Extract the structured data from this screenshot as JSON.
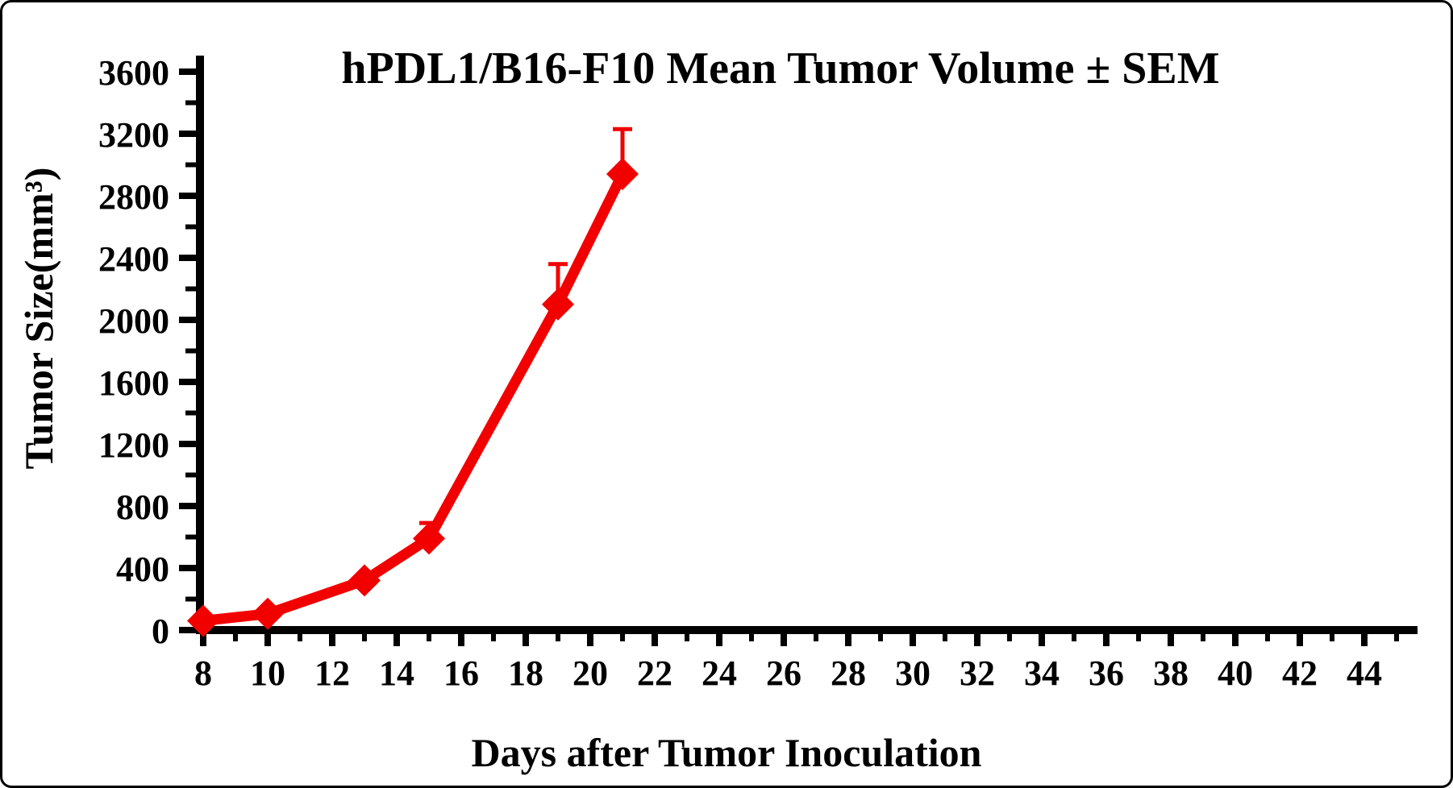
{
  "figure": {
    "background_color": "#ffffff",
    "frame_color": "#000000",
    "axis_color": "#000000",
    "series_color": "#f20000"
  },
  "chart_data": {
    "type": "line",
    "title": "hPDL1/B16-F10 Mean Tumor Volume ± SEM",
    "xlabel": "Days after Tumor Inoculation",
    "ylabel": "Tumor Size(mm³)",
    "grid": false,
    "legend": false,
    "x_axis": {
      "range": [
        7.9,
        45.6
      ],
      "ticks_major": [
        8,
        10,
        12,
        14,
        16,
        18,
        20,
        22,
        24,
        26,
        28,
        30,
        32,
        34,
        36,
        38,
        40,
        42,
        44
      ],
      "ticks_minor": [
        9,
        11,
        13,
        15,
        17,
        19,
        21,
        23,
        25,
        27,
        29,
        31,
        33,
        35,
        37,
        39,
        41,
        43,
        45
      ]
    },
    "y_axis": {
      "range": [
        0,
        3600
      ],
      "ticks_major": [
        0,
        400,
        800,
        1200,
        1600,
        2000,
        2400,
        2800,
        3200,
        3600
      ],
      "minor_step": 200
    },
    "series": [
      {
        "name": "hPDL1/B16-F10",
        "color": "#f20000",
        "marker": "diamond",
        "x": [
          8,
          10,
          13,
          15,
          19,
          21
        ],
        "y": [
          60,
          105,
          320,
          590,
          2100,
          2940
        ],
        "sem_upper": [
          0,
          0,
          0,
          100,
          260,
          290
        ]
      }
    ]
  }
}
